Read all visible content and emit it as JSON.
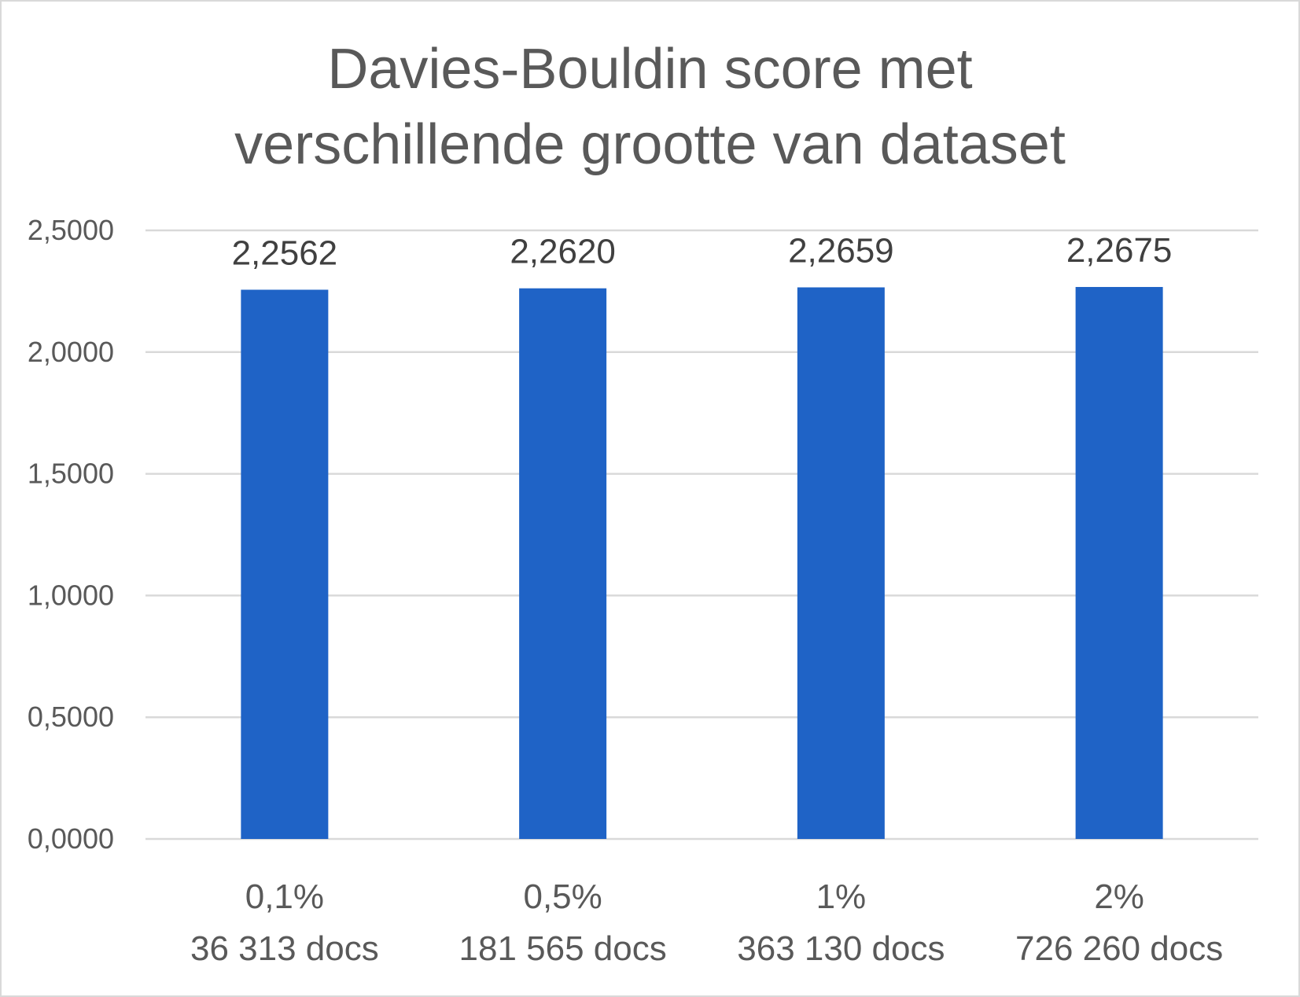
{
  "chart_data": {
    "type": "bar",
    "title_lines": [
      "Davies-Bouldin score met",
      "verschillende grootte van dataset"
    ],
    "categories": [
      [
        "0,1%",
        "36 313 docs"
      ],
      [
        "0,5%",
        "181 565 docs"
      ],
      [
        "1%",
        "363 130 docs"
      ],
      [
        "2%",
        "726 260 docs"
      ]
    ],
    "values": [
      2.2562,
      2.262,
      2.2659,
      2.2675
    ],
    "data_labels": [
      "2,2562",
      "2,2620",
      "2,2659",
      "2,2675"
    ],
    "ylim": [
      0,
      2.5
    ],
    "yticks": [
      0,
      0.5,
      1,
      1.5,
      2,
      2.5
    ],
    "ytick_labels": [
      "0,0000",
      "0,5000",
      "1,0000",
      "1,5000",
      "2,0000",
      "2,5000"
    ],
    "grid": true,
    "legend": "none",
    "bar_color": "#1f63c6",
    "grid_color": "#d9d9d9"
  }
}
